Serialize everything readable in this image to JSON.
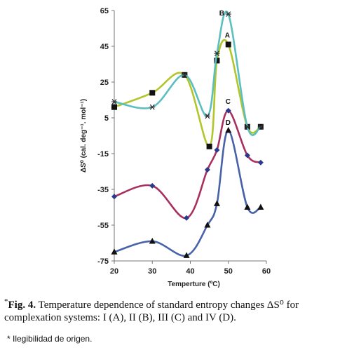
{
  "chart_data": {
    "type": "line",
    "xlabel": "Temperture (ºC)",
    "ylabel": "ΔS⁰ (cal. deg⁻¹. mol⁻¹)",
    "xlim": [
      20,
      60
    ],
    "ylim": [
      -75,
      65
    ],
    "xticks": [
      "20",
      "30",
      "40",
      "50",
      "60"
    ],
    "yticks": [
      "65",
      "45",
      "25",
      "5",
      "-15",
      "-35",
      "-55",
      "-75"
    ],
    "grid": false,
    "legend": "inline labels",
    "series": [
      {
        "name": "A",
        "color": "#b3c52a",
        "marker": "square",
        "x": [
          20,
          30,
          38.5,
          45,
          47,
          50,
          55,
          58.5
        ],
        "y": [
          11,
          19,
          29,
          -11,
          37,
          46,
          0,
          0
        ]
      },
      {
        "name": "B",
        "color": "#5cbfbf",
        "marker": "star",
        "x": [
          20,
          30,
          38.5,
          44.5,
          47,
          50,
          55,
          58.5
        ],
        "y": [
          14,
          11,
          29,
          6,
          41,
          63,
          0,
          0
        ]
      },
      {
        "name": "C",
        "color": "#a8305e",
        "marker": "diamond",
        "x": [
          20,
          30,
          39,
          44.5,
          47,
          50,
          55,
          58.5
        ],
        "y": [
          -39,
          -33,
          -51,
          -24,
          -13,
          9,
          -16,
          -20
        ]
      },
      {
        "name": "D",
        "color": "#4762a8",
        "marker": "triangle",
        "x": [
          20,
          30,
          39,
          44.5,
          47,
          50,
          55,
          58.5
        ],
        "y": [
          -70,
          -64,
          -72,
          -55,
          -43,
          -2,
          -45,
          -45
        ]
      }
    ]
  },
  "caption": {
    "star": "*",
    "fig_label": "Fig. 4.",
    "text": " Temperature dependence of standard entropy changes ΔS⁰ for complexation systems: I (A), II (B), III (C) and IV (D)."
  },
  "note": "* Ilegibilidad de origen."
}
